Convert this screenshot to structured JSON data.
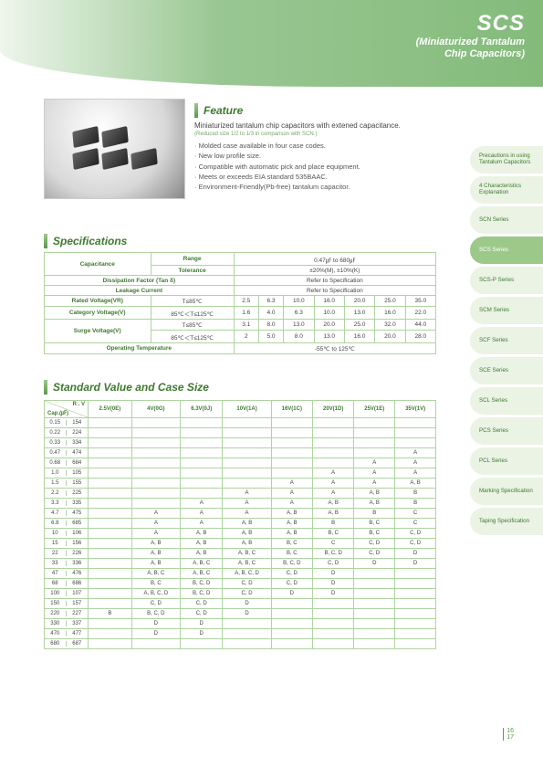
{
  "header": {
    "series": "SCS",
    "sub1": "(Miniaturized Tantalum",
    "sub2": "Chip Capacitors)"
  },
  "feature": {
    "title": "Feature",
    "lead": "Miniaturized tantalum chip capacitors with extened capacitance.",
    "small": "(Reduced size 1/2 to 1/3 in comparison with SCN.)",
    "bullets": [
      "Molded case available in four case codes.",
      "New low profile size.",
      "Compatible with automatic pick and place equipment.",
      "Meets or exceeds EIA standard 535BAAC.",
      "Environment-Friendly(Pb-free) tantalum capacitor."
    ]
  },
  "specs": {
    "title": "Specifications",
    "rows": {
      "cap_label": "Capacitance",
      "range_label": "Range",
      "range_val": "0.47㎌ to 680㎌",
      "tol_label": "Tolerance",
      "tol_val": "±20%(M), ±10%(K)",
      "diss_label": "Dissipation Factor (Tan δ)",
      "diss_val": "Refer to Specification",
      "leak_label": "Leakage Current",
      "leak_val": "Refer to Specification",
      "rated_label": "Rated Voltage(VR)",
      "rated_cond": "T≤85℃",
      "rated_vals": [
        "2.5",
        "6.3",
        "10.0",
        "16.0",
        "20.0",
        "25.0",
        "35.0"
      ],
      "cat_label": "Category Voltage(V)",
      "cat_cond": "85℃＜T≤125℃",
      "cat_vals": [
        "1.6",
        "4.0",
        "6.3",
        "10.0",
        "13.0",
        "16.0",
        "22.0"
      ],
      "surge_label": "Surge Voltage(V)",
      "surge1_cond": "T≤85℃",
      "surge1_vals": [
        "3.1",
        "8.0",
        "13.0",
        "20.0",
        "25.0",
        "32.0",
        "44.0"
      ],
      "surge2_cond": "85℃＜T≤125℃",
      "surge2_vals": [
        "2",
        "5.0",
        "8.0",
        "13.0",
        "16.0",
        "20.0",
        "28.0"
      ],
      "optemp_label": "Operating Temperature",
      "optemp_val": "-55℃ to 125℃"
    }
  },
  "case": {
    "title": "Standard Value and Case Size",
    "cap_head": "Cap.(㎌)",
    "rv_head": "R . V",
    "volt_cols": [
      "2.5V(0E)",
      "4V(0G)",
      "6.3V(0J)",
      "10V(1A)",
      "16V(1C)",
      "20V(1D)",
      "25V(1E)",
      "35V(1V)"
    ],
    "rows": [
      {
        "c": "0.15",
        "r": "154",
        "v": [
          "",
          "",
          "",
          "",
          "",
          "",
          "",
          ""
        ]
      },
      {
        "c": "0.22",
        "r": "224",
        "v": [
          "",
          "",
          "",
          "",
          "",
          "",
          "",
          ""
        ]
      },
      {
        "c": "0.33",
        "r": "334",
        "v": [
          "",
          "",
          "",
          "",
          "",
          "",
          "",
          ""
        ]
      },
      {
        "c": "0.47",
        "r": "474",
        "v": [
          "",
          "",
          "",
          "",
          "",
          "",
          "",
          "A"
        ]
      },
      {
        "c": "0.68",
        "r": "684",
        "v": [
          "",
          "",
          "",
          "",
          "",
          "",
          "A",
          "A"
        ]
      },
      {
        "c": "1.0",
        "r": "105",
        "v": [
          "",
          "",
          "",
          "",
          "",
          "A",
          "A",
          "A"
        ]
      },
      {
        "c": "1.5",
        "r": "155",
        "v": [
          "",
          "",
          "",
          "",
          "A",
          "A",
          "A",
          "A, B"
        ]
      },
      {
        "c": "2.2",
        "r": "225",
        "v": [
          "",
          "",
          "",
          "A",
          "A",
          "A",
          "A, B",
          "B"
        ]
      },
      {
        "c": "3.3",
        "r": "335",
        "v": [
          "",
          "",
          "A",
          "A",
          "A",
          "A, B",
          "A, B",
          "B"
        ]
      },
      {
        "c": "4.7",
        "r": "475",
        "v": [
          "",
          "A",
          "A",
          "A",
          "A, B",
          "A, B",
          "B",
          "C"
        ]
      },
      {
        "c": "6.8",
        "r": "685",
        "v": [
          "",
          "A",
          "A",
          "A, B",
          "A, B",
          "B",
          "B, C",
          "C"
        ]
      },
      {
        "c": "10",
        "r": "106",
        "v": [
          "",
          "A",
          "A, B",
          "A, B",
          "A, B",
          "B, C",
          "B, C",
          "C, D"
        ]
      },
      {
        "c": "15",
        "r": "156",
        "v": [
          "",
          "A, B",
          "A, B",
          "A, B",
          "B, C",
          "C",
          "C, D",
          "C, D"
        ]
      },
      {
        "c": "22",
        "r": "226",
        "v": [
          "",
          "A, B",
          "A, B",
          "A, B, C",
          "B, C",
          "B, C, D",
          "C, D",
          "D"
        ]
      },
      {
        "c": "33",
        "r": "336",
        "v": [
          "",
          "A, B",
          "A, B, C",
          "A, B, C",
          "B, C, D",
          "C, D",
          "D",
          "D"
        ]
      },
      {
        "c": "47",
        "r": "476",
        "v": [
          "",
          "A, B, C",
          "A, B, C",
          "A, B, C, D",
          "C, D",
          "D",
          "",
          ""
        ]
      },
      {
        "c": "68",
        "r": "686",
        "v": [
          "",
          "B, C",
          "B, C, D",
          "C, D",
          "C, D",
          "D",
          "",
          ""
        ]
      },
      {
        "c": "100",
        "r": "107",
        "v": [
          "",
          "A, B, C, D",
          "B, C, D",
          "C, D",
          "D",
          "D",
          "",
          ""
        ]
      },
      {
        "c": "150",
        "r": "157",
        "v": [
          "",
          "C, D",
          "C, D",
          "D",
          "",
          "",
          "",
          ""
        ]
      },
      {
        "c": "220",
        "r": "227",
        "v": [
          "B",
          "B, C, D",
          "C, D",
          "D",
          "",
          "",
          "",
          ""
        ]
      },
      {
        "c": "330",
        "r": "337",
        "v": [
          "",
          "D",
          "D",
          "",
          "",
          "",
          "",
          ""
        ]
      },
      {
        "c": "470",
        "r": "477",
        "v": [
          "",
          "D",
          "D",
          "",
          "",
          "",
          "",
          ""
        ]
      },
      {
        "c": "680",
        "r": "687",
        "v": [
          "",
          "",
          "",
          "",
          "",
          "",
          "",
          ""
        ]
      }
    ]
  },
  "sidebar": [
    {
      "label": "Precautions in using Tantalum Capacitors",
      "active": false
    },
    {
      "label": "4 Characteristics Explanation",
      "active": false
    },
    {
      "label": "SCN Series",
      "active": false
    },
    {
      "label": "SCS Series",
      "active": true
    },
    {
      "label": "SCS-P Series",
      "active": false
    },
    {
      "label": "SCM Series",
      "active": false
    },
    {
      "label": "SCF Series",
      "active": false
    },
    {
      "label": "SCE Series",
      "active": false
    },
    {
      "label": "SCL Series",
      "active": false
    },
    {
      "label": "PCS Series",
      "active": false
    },
    {
      "label": "PCL Series",
      "active": false
    },
    {
      "label": "Marking Specification",
      "active": false
    },
    {
      "label": "Taping Specification",
      "active": false
    }
  ],
  "footer": {
    "p1": "16",
    "p2": "17"
  },
  "colors": {
    "border": "#aed4a0",
    "text": "#3e7a2e"
  }
}
